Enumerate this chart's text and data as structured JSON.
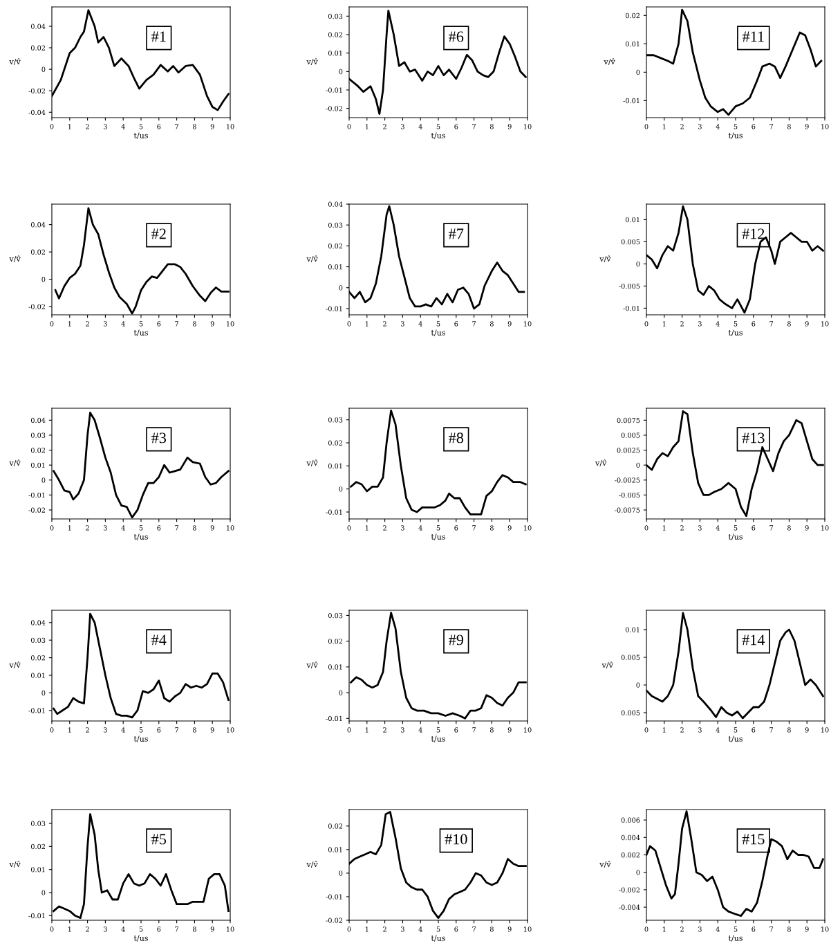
{
  "chart_data": [
    {
      "type": "line",
      "annotations": [
        "#1"
      ],
      "xlabel": "t/us",
      "ylabel": "v/v̂",
      "color": "#000000",
      "xlim": [
        0,
        10
      ],
      "xticks": [
        0,
        1,
        2,
        3,
        4,
        5,
        6,
        7,
        8,
        9,
        10
      ],
      "ylim": [
        -0.045,
        0.058
      ],
      "yticks": [
        -0.04,
        -0.02,
        0,
        0.02,
        0.04
      ],
      "grid": false,
      "x": [
        0,
        0.5,
        1,
        1.3,
        1.6,
        1.8,
        2.05,
        2.4,
        2.6,
        2.9,
        3.2,
        3.5,
        3.9,
        4.3,
        4.6,
        4.9,
        5.3,
        5.7,
        6.1,
        6.5,
        6.8,
        7.1,
        7.5,
        7.9,
        8.3,
        8.7,
        9.0,
        9.3,
        9.6,
        9.9
      ],
      "values": [
        -0.025,
        -0.01,
        0.015,
        0.02,
        0.03,
        0.035,
        0.055,
        0.04,
        0.025,
        0.03,
        0.02,
        0.003,
        0.01,
        0.003,
        -0.008,
        -0.018,
        -0.01,
        -0.005,
        0.004,
        -0.002,
        0.003,
        -0.003,
        0.003,
        0.004,
        -0.005,
        -0.025,
        -0.035,
        -0.038,
        -0.03,
        -0.023
      ]
    },
    {
      "type": "line",
      "annotations": [
        "#6"
      ],
      "xlabel": "t/us",
      "ylabel": "v/v̂",
      "color": "#000000",
      "xlim": [
        0,
        10
      ],
      "xticks": [
        0,
        1,
        2,
        3,
        4,
        5,
        6,
        7,
        8,
        9,
        10
      ],
      "ylim": [
        -0.025,
        0.035
      ],
      "yticks": [
        -0.02,
        -0.01,
        0,
        0.01,
        0.02,
        0.03
      ],
      "grid": false,
      "x": [
        0,
        0.5,
        0.8,
        1.2,
        1.5,
        1.7,
        1.9,
        2.1,
        2.2,
        2.5,
        2.8,
        3.1,
        3.4,
        3.7,
        4.1,
        4.4,
        4.7,
        5.0,
        5.3,
        5.6,
        6.0,
        6.3,
        6.6,
        6.9,
        7.2,
        7.5,
        7.8,
        8.1,
        8.4,
        8.7,
        9.0,
        9.3,
        9.6,
        9.9
      ],
      "values": [
        -0.004,
        -0.008,
        -0.011,
        -0.008,
        -0.015,
        -0.023,
        -0.01,
        0.02,
        0.033,
        0.02,
        0.003,
        0.005,
        0.0,
        0.001,
        -0.005,
        0.0,
        -0.002,
        0.003,
        -0.002,
        0.001,
        -0.004,
        0.002,
        0.009,
        0.006,
        0.0,
        -0.002,
        -0.003,
        0.0,
        0.01,
        0.019,
        0.015,
        0.008,
        0.0,
        -0.003
      ]
    },
    {
      "type": "line",
      "annotations": [
        "#11"
      ],
      "xlabel": "t/us",
      "ylabel": "v/v̂",
      "color": "#000000",
      "xlim": [
        0,
        10
      ],
      "xticks": [
        0,
        1,
        2,
        3,
        4,
        5,
        6,
        7,
        8,
        9,
        10
      ],
      "ylim": [
        -0.016,
        0.023
      ],
      "yticks": [
        -0.01,
        0,
        0.01,
        0.02
      ],
      "grid": false,
      "x": [
        0,
        0.4,
        0.8,
        1.2,
        1.5,
        1.8,
        2.0,
        2.3,
        2.6,
        3.0,
        3.3,
        3.6,
        4.0,
        4.3,
        4.6,
        5.0,
        5.4,
        5.8,
        6.2,
        6.5,
        6.9,
        7.2,
        7.5,
        7.8,
        8.2,
        8.6,
        8.9,
        9.2,
        9.5,
        9.8
      ],
      "values": [
        0.006,
        0.006,
        0.005,
        0.004,
        0.003,
        0.01,
        0.022,
        0.018,
        0.007,
        -0.003,
        -0.009,
        -0.012,
        -0.014,
        -0.013,
        -0.015,
        -0.012,
        -0.011,
        -0.009,
        -0.003,
        0.002,
        0.003,
        0.002,
        -0.002,
        0.002,
        0.008,
        0.014,
        0.013,
        0.008,
        0.002,
        0.004
      ]
    },
    {
      "type": "line",
      "annotations": [
        "#2"
      ],
      "xlabel": "t/us",
      "ylabel": "v/v̂",
      "color": "#000000",
      "xlim": [
        0,
        10
      ],
      "xticks": [
        0,
        1,
        2,
        3,
        4,
        5,
        6,
        7,
        8,
        9,
        10
      ],
      "ylim": [
        -0.026,
        0.055
      ],
      "yticks": [
        -0.02,
        0,
        0.02,
        0.04
      ],
      "grid": false,
      "x": [
        0.2,
        0.4,
        0.7,
        1.0,
        1.3,
        1.6,
        1.8,
        2.05,
        2.3,
        2.6,
        2.9,
        3.2,
        3.5,
        3.8,
        4.2,
        4.5,
        4.7,
        5.0,
        5.3,
        5.6,
        5.9,
        6.2,
        6.5,
        6.9,
        7.2,
        7.5,
        7.9,
        8.3,
        8.6,
        8.9,
        9.2,
        9.5,
        9.9
      ],
      "values": [
        -0.008,
        -0.014,
        -0.005,
        0.001,
        0.004,
        0.01,
        0.025,
        0.052,
        0.04,
        0.033,
        0.018,
        0.005,
        -0.006,
        -0.013,
        -0.018,
        -0.025,
        -0.02,
        -0.008,
        -0.002,
        0.002,
        0.001,
        0.006,
        0.011,
        0.011,
        0.009,
        0.004,
        -0.005,
        -0.012,
        -0.016,
        -0.01,
        -0.006,
        -0.009,
        -0.009
      ]
    },
    {
      "type": "line",
      "annotations": [
        "#7"
      ],
      "xlabel": "t/us",
      "ylabel": "v/v̂",
      "color": "#000000",
      "xlim": [
        0,
        10
      ],
      "xticks": [
        0,
        1,
        2,
        3,
        4,
        5,
        6,
        7,
        8,
        9,
        10
      ],
      "ylim": [
        -0.013,
        0.04
      ],
      "yticks": [
        -0.01,
        0,
        0.01,
        0.02,
        0.03,
        0.04
      ],
      "grid": false,
      "x": [
        0,
        0.3,
        0.6,
        0.9,
        1.2,
        1.5,
        1.8,
        2.1,
        2.25,
        2.5,
        2.8,
        3.1,
        3.4,
        3.7,
        4.0,
        4.3,
        4.6,
        4.9,
        5.2,
        5.5,
        5.8,
        6.1,
        6.4,
        6.7,
        7.0,
        7.3,
        7.6,
        8.0,
        8.3,
        8.6,
        8.9,
        9.2,
        9.5,
        9.8
      ],
      "values": [
        -0.002,
        -0.005,
        -0.002,
        -0.007,
        -0.005,
        0.002,
        0.015,
        0.035,
        0.039,
        0.03,
        0.015,
        0.005,
        -0.005,
        -0.009,
        -0.009,
        -0.008,
        -0.009,
        -0.005,
        -0.008,
        -0.003,
        -0.007,
        -0.001,
        0.0,
        -0.003,
        -0.01,
        -0.008,
        0.001,
        0.008,
        0.012,
        0.008,
        0.006,
        0.002,
        -0.002,
        -0.002
      ]
    },
    {
      "type": "line",
      "annotations": [
        "#12"
      ],
      "xlabel": "t/us",
      "ylabel": "v/v̂",
      "color": "#000000",
      "xlim": [
        0,
        10
      ],
      "xticks": [
        0,
        1,
        2,
        3,
        4,
        5,
        6,
        7,
        8,
        9,
        10
      ],
      "ylim": [
        -0.0115,
        0.0135
      ],
      "yticks": [
        -0.01,
        -0.005,
        0,
        0.005,
        0.01
      ],
      "grid": false,
      "x": [
        0,
        0.3,
        0.6,
        0.9,
        1.2,
        1.5,
        1.8,
        2.05,
        2.3,
        2.6,
        2.9,
        3.2,
        3.5,
        3.8,
        4.1,
        4.4,
        4.8,
        5.1,
        5.5,
        5.8,
        6.1,
        6.4,
        6.7,
        7.0,
        7.2,
        7.5,
        7.8,
        8.1,
        8.4,
        8.7,
        9.0,
        9.3,
        9.6,
        9.9
      ],
      "values": [
        0.002,
        0.001,
        -0.001,
        0.002,
        0.004,
        0.003,
        0.007,
        0.013,
        0.01,
        0.0,
        -0.006,
        -0.007,
        -0.005,
        -0.006,
        -0.008,
        -0.009,
        -0.01,
        -0.008,
        -0.011,
        -0.008,
        0.0,
        0.005,
        0.006,
        0.003,
        0.0,
        0.005,
        0.006,
        0.007,
        0.006,
        0.005,
        0.005,
        0.003,
        0.004,
        0.003
      ]
    },
    {
      "type": "line",
      "annotations": [
        "#3"
      ],
      "xlabel": "t/us",
      "ylabel": "v/v̂",
      "color": "#000000",
      "xlim": [
        0,
        10
      ],
      "xticks": [
        0,
        1,
        2,
        3,
        4,
        5,
        6,
        7,
        8,
        9,
        10
      ],
      "ylim": [
        -0.026,
        0.048
      ],
      "yticks": [
        -0.02,
        -0.01,
        0,
        0.01,
        0.02,
        0.03,
        0.04
      ],
      "grid": false,
      "x": [
        0.1,
        0.4,
        0.7,
        1.0,
        1.2,
        1.5,
        1.8,
        2.0,
        2.15,
        2.4,
        2.7,
        3.0,
        3.3,
        3.6,
        3.9,
        4.2,
        4.5,
        4.8,
        5.1,
        5.4,
        5.7,
        6.0,
        6.3,
        6.6,
        6.9,
        7.2,
        7.6,
        7.9,
        8.3,
        8.6,
        8.9,
        9.2,
        9.5,
        9.9
      ],
      "values": [
        0.006,
        0.0,
        -0.007,
        -0.008,
        -0.013,
        -0.009,
        0.0,
        0.03,
        0.045,
        0.04,
        0.028,
        0.015,
        0.005,
        -0.01,
        -0.017,
        -0.018,
        -0.025,
        -0.02,
        -0.01,
        -0.002,
        -0.002,
        0.002,
        0.01,
        0.005,
        0.006,
        0.007,
        0.015,
        0.012,
        0.011,
        0.002,
        -0.003,
        -0.002,
        0.002,
        0.006
      ]
    },
    {
      "type": "line",
      "annotations": [
        "#8"
      ],
      "xlabel": "t/us",
      "ylabel": "v/v̂",
      "color": "#000000",
      "xlim": [
        0,
        10
      ],
      "xticks": [
        0,
        1,
        2,
        3,
        4,
        5,
        6,
        7,
        8,
        9,
        10
      ],
      "ylim": [
        -0.013,
        0.035
      ],
      "yticks": [
        -0.01,
        0,
        0.01,
        0.02,
        0.03
      ],
      "grid": false,
      "x": [
        0.1,
        0.4,
        0.7,
        1.0,
        1.3,
        1.6,
        1.9,
        2.1,
        2.35,
        2.6,
        2.9,
        3.2,
        3.5,
        3.8,
        4.1,
        4.4,
        4.8,
        5.1,
        5.4,
        5.6,
        5.9,
        6.2,
        6.5,
        6.8,
        7.1,
        7.4,
        7.7,
        8.0,
        8.3,
        8.6,
        8.9,
        9.2,
        9.6,
        9.9
      ],
      "values": [
        0.001,
        0.003,
        0.002,
        -0.001,
        0.001,
        0.001,
        0.005,
        0.02,
        0.034,
        0.028,
        0.01,
        -0.004,
        -0.009,
        -0.01,
        -0.008,
        -0.008,
        -0.008,
        -0.007,
        -0.005,
        -0.002,
        -0.004,
        -0.004,
        -0.008,
        -0.011,
        -0.011,
        -0.011,
        -0.003,
        -0.001,
        0.003,
        0.006,
        0.005,
        0.003,
        0.003,
        0.002
      ]
    },
    {
      "type": "line",
      "annotations": [
        "#13"
      ],
      "xlabel": "t/us",
      "ylabel": "v/v̂",
      "color": "#000000",
      "xlim": [
        0,
        10
      ],
      "xticks": [
        0,
        1,
        2,
        3,
        4,
        5,
        6,
        7,
        8,
        9,
        10
      ],
      "ylim": [
        -0.009,
        0.0095
      ],
      "yticks": [
        -0.0075,
        -0.005,
        -0.0025,
        0,
        0.0025,
        0.005,
        0.0075
      ],
      "grid": false,
      "x": [
        0,
        0.3,
        0.6,
        0.9,
        1.2,
        1.5,
        1.8,
        2.05,
        2.3,
        2.6,
        2.9,
        3.2,
        3.5,
        3.8,
        4.2,
        4.6,
        5.0,
        5.3,
        5.6,
        5.9,
        6.2,
        6.5,
        6.8,
        7.1,
        7.4,
        7.7,
        8.0,
        8.4,
        8.7,
        9.0,
        9.3,
        9.6,
        9.9
      ],
      "values": [
        0.0,
        -0.0008,
        0.001,
        0.002,
        0.0015,
        0.003,
        0.004,
        0.009,
        0.0085,
        0.002,
        -0.003,
        -0.005,
        -0.005,
        -0.0045,
        -0.004,
        -0.003,
        -0.004,
        -0.007,
        -0.0085,
        -0.004,
        -0.001,
        0.003,
        0.001,
        -0.001,
        0.002,
        0.004,
        0.005,
        0.0075,
        0.007,
        0.004,
        0.001,
        0.0,
        0.0
      ]
    },
    {
      "type": "line",
      "annotations": [
        "#4"
      ],
      "xlabel": "t/us",
      "ylabel": "v/v̂",
      "color": "#000000",
      "xlim": [
        0,
        10
      ],
      "xticks": [
        0,
        1,
        2,
        3,
        4,
        5,
        6,
        7,
        8,
        9,
        10
      ],
      "ylim": [
        -0.016,
        0.047
      ],
      "yticks": [
        -0.01,
        0,
        0.01,
        0.02,
        0.03,
        0.04
      ],
      "grid": false,
      "x": [
        0.1,
        0.3,
        0.6,
        0.9,
        1.2,
        1.5,
        1.8,
        2.0,
        2.15,
        2.4,
        2.7,
        3.0,
        3.3,
        3.6,
        3.9,
        4.2,
        4.5,
        4.8,
        5.1,
        5.4,
        5.7,
        6.0,
        6.3,
        6.6,
        6.9,
        7.2,
        7.5,
        7.8,
        8.1,
        8.4,
        8.7,
        9.0,
        9.3,
        9.6,
        9.9
      ],
      "values": [
        -0.009,
        -0.012,
        -0.01,
        -0.008,
        -0.003,
        -0.005,
        -0.006,
        0.02,
        0.045,
        0.04,
        0.025,
        0.01,
        -0.003,
        -0.012,
        -0.013,
        -0.013,
        -0.014,
        -0.01,
        0.001,
        0.0,
        0.002,
        0.007,
        -0.003,
        -0.005,
        -0.002,
        0.0,
        0.005,
        0.003,
        0.004,
        0.003,
        0.005,
        0.011,
        0.011,
        0.006,
        -0.004
      ]
    },
    {
      "type": "line",
      "annotations": [
        "#9"
      ],
      "xlabel": "t/us",
      "ylabel": "v/v̂",
      "color": "#000000",
      "xlim": [
        0,
        10
      ],
      "xticks": [
        0,
        1,
        2,
        3,
        4,
        5,
        6,
        7,
        8,
        9,
        10
      ],
      "ylim": [
        -0.011,
        0.032
      ],
      "yticks": [
        -0.01,
        0,
        0.01,
        0.02,
        0.03
      ],
      "grid": false,
      "x": [
        0.1,
        0.4,
        0.7,
        1.0,
        1.3,
        1.6,
        1.9,
        2.1,
        2.35,
        2.6,
        2.9,
        3.2,
        3.5,
        3.8,
        4.2,
        4.6,
        5.0,
        5.4,
        5.8,
        6.2,
        6.5,
        6.8,
        7.1,
        7.4,
        7.7,
        8.0,
        8.3,
        8.6,
        8.9,
        9.2,
        9.5,
        9.9
      ],
      "values": [
        0.004,
        0.006,
        0.005,
        0.003,
        0.002,
        0.003,
        0.008,
        0.02,
        0.031,
        0.025,
        0.008,
        -0.002,
        -0.006,
        -0.007,
        -0.007,
        -0.008,
        -0.008,
        -0.009,
        -0.008,
        -0.009,
        -0.01,
        -0.007,
        -0.007,
        -0.006,
        -0.001,
        -0.002,
        -0.004,
        -0.005,
        -0.002,
        0.0,
        0.004,
        0.004
      ]
    },
    {
      "type": "line",
      "annotations": [
        "#14"
      ],
      "xlabel": "t/us",
      "ylabel": "v/v̂",
      "color": "#000000",
      "xlim": [
        0,
        10
      ],
      "xticks": [
        0,
        1,
        2,
        3,
        4,
        5,
        6,
        7,
        8,
        9,
        10
      ],
      "ylim": [
        -0.0065,
        0.0135
      ],
      "yticks": [
        {
          "value": -0.005,
          "label": "0.005"
        },
        0,
        0.005,
        0.01
      ],
      "grid": false,
      "x": [
        0,
        0.3,
        0.6,
        0.9,
        1.2,
        1.5,
        1.8,
        2.05,
        2.3,
        2.6,
        2.9,
        3.2,
        3.6,
        3.9,
        4.2,
        4.5,
        4.8,
        5.1,
        5.4,
        5.7,
        6.0,
        6.3,
        6.6,
        6.9,
        7.2,
        7.5,
        7.8,
        8.0,
        8.3,
        8.6,
        8.9,
        9.2,
        9.5,
        9.9
      ],
      "values": [
        -0.001,
        -0.002,
        -0.0025,
        -0.003,
        -0.002,
        0.0,
        0.006,
        0.013,
        0.01,
        0.003,
        -0.002,
        -0.003,
        -0.0045,
        -0.0058,
        -0.004,
        -0.005,
        -0.0055,
        -0.0048,
        -0.006,
        -0.005,
        -0.004,
        -0.004,
        -0.003,
        0.0,
        0.004,
        0.008,
        0.0095,
        0.01,
        0.008,
        0.004,
        0.0,
        0.001,
        0.0,
        -0.002
      ]
    },
    {
      "type": "line",
      "annotations": [
        "#5"
      ],
      "xlabel": "t/us",
      "ylabel": "v/v̂",
      "color": "#000000",
      "xlim": [
        0,
        10
      ],
      "xticks": [
        0,
        1,
        2,
        3,
        4,
        5,
        6,
        7,
        8,
        9,
        10
      ],
      "ylim": [
        -0.012,
        0.036
      ],
      "yticks": [
        -0.01,
        0,
        0.01,
        0.02,
        0.03
      ],
      "grid": false,
      "x": [
        0.1,
        0.4,
        0.7,
        1.0,
        1.3,
        1.6,
        1.8,
        2.0,
        2.15,
        2.4,
        2.6,
        2.8,
        3.1,
        3.4,
        3.7,
        4.0,
        4.3,
        4.6,
        4.9,
        5.2,
        5.5,
        5.8,
        6.1,
        6.4,
        6.7,
        7.0,
        7.3,
        7.6,
        7.9,
        8.2,
        8.5,
        8.8,
        9.1,
        9.4,
        9.7,
        9.9
      ],
      "values": [
        -0.008,
        -0.006,
        -0.007,
        -0.008,
        -0.01,
        -0.011,
        -0.005,
        0.02,
        0.034,
        0.025,
        0.01,
        0.0,
        0.001,
        -0.003,
        -0.003,
        0.004,
        0.008,
        0.004,
        0.003,
        0.004,
        0.008,
        0.006,
        0.003,
        0.008,
        0.001,
        -0.005,
        -0.005,
        -0.005,
        -0.004,
        -0.004,
        -0.004,
        0.006,
        0.008,
        0.008,
        0.003,
        -0.008
      ]
    },
    {
      "type": "line",
      "annotations": [
        "#10"
      ],
      "xlabel": "t/us",
      "ylabel": "v/v̂",
      "color": "#000000",
      "xlim": [
        0,
        10
      ],
      "xticks": [
        0,
        1,
        2,
        3,
        4,
        5,
        6,
        7,
        8,
        9,
        10
      ],
      "ylim": [
        -0.02,
        0.027
      ],
      "yticks": [
        -0.02,
        -0.01,
        0,
        0.01,
        0.02
      ],
      "grid": false,
      "x": [
        0,
        0.3,
        0.6,
        0.9,
        1.2,
        1.5,
        1.8,
        2.05,
        2.3,
        2.6,
        2.9,
        3.2,
        3.5,
        3.8,
        4.1,
        4.4,
        4.7,
        5.0,
        5.3,
        5.6,
        5.9,
        6.2,
        6.5,
        6.8,
        7.1,
        7.4,
        7.7,
        8.0,
        8.3,
        8.6,
        8.9,
        9.2,
        9.5,
        9.9
      ],
      "values": [
        0.004,
        0.006,
        0.007,
        0.008,
        0.009,
        0.008,
        0.012,
        0.025,
        0.026,
        0.015,
        0.002,
        -0.004,
        -0.006,
        -0.007,
        -0.007,
        -0.01,
        -0.016,
        -0.019,
        -0.016,
        -0.011,
        -0.009,
        -0.008,
        -0.007,
        -0.004,
        0.0,
        -0.001,
        -0.004,
        -0.005,
        -0.004,
        0.0,
        0.006,
        0.004,
        0.003,
        0.003
      ]
    },
    {
      "type": "line",
      "annotations": [
        "#15"
      ],
      "xlabel": "t/us",
      "ylabel": "v/v̂",
      "color": "#000000",
      "xlim": [
        0,
        10
      ],
      "xticks": [
        0,
        1,
        2,
        3,
        4,
        5,
        6,
        7,
        8,
        9,
        10
      ],
      "ylim": [
        -0.0055,
        0.0072
      ],
      "yticks": [
        -0.004,
        -0.002,
        0,
        0.002,
        0.004,
        0.006
      ],
      "grid": false,
      "x": [
        0,
        0.2,
        0.5,
        0.8,
        1.1,
        1.4,
        1.6,
        1.8,
        2.0,
        2.25,
        2.5,
        2.8,
        3.1,
        3.4,
        3.7,
        4.0,
        4.3,
        4.6,
        5.0,
        5.3,
        5.6,
        5.9,
        6.2,
        6.5,
        6.8,
        7.0,
        7.3,
        7.6,
        7.9,
        8.2,
        8.5,
        8.8,
        9.1,
        9.4,
        9.7,
        9.9
      ],
      "values": [
        0.002,
        0.003,
        0.0025,
        0.0005,
        -0.0015,
        -0.003,
        -0.0025,
        0.001,
        0.005,
        0.007,
        0.004,
        0.0,
        -0.0003,
        -0.001,
        -0.0005,
        -0.002,
        -0.004,
        -0.0045,
        -0.0048,
        -0.005,
        -0.0042,
        -0.0045,
        -0.0035,
        -0.001,
        0.002,
        0.0038,
        0.0035,
        0.003,
        0.0015,
        0.0025,
        0.002,
        0.002,
        0.0018,
        0.0005,
        0.0005,
        0.0015
      ]
    }
  ]
}
